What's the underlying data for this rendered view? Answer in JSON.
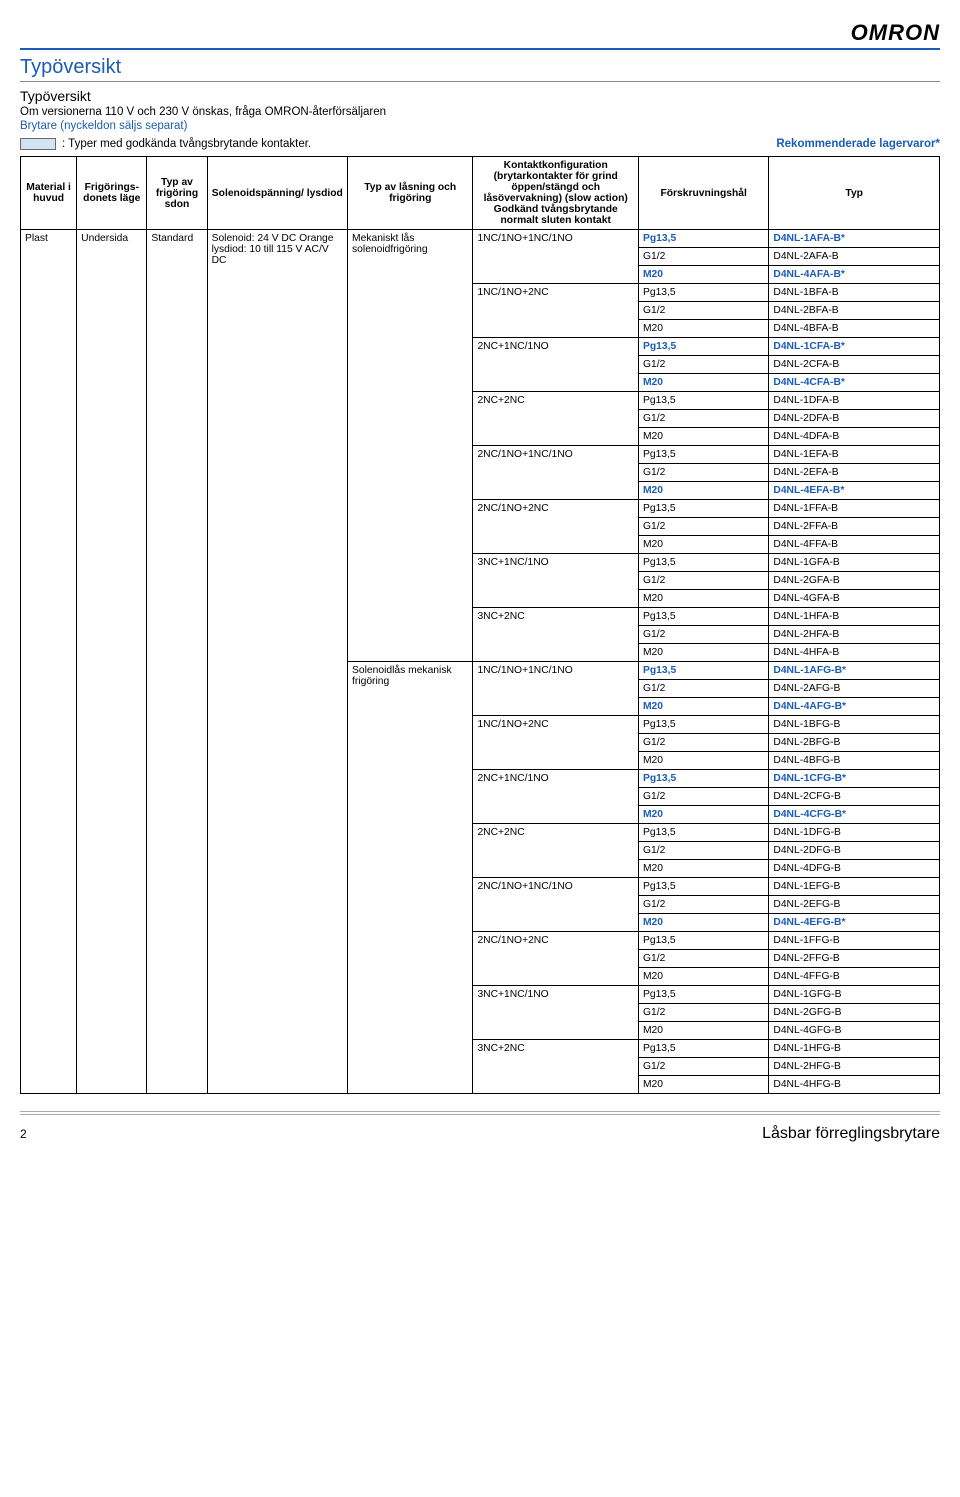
{
  "logo": "OMRON",
  "sectionTitle": "Typöversikt",
  "subhead": "Typöversikt",
  "intro": "Om versionerna 110 V och 230 V önskas, fråga OMRON-återförsäljaren",
  "subLink": "Brytare (nyckeldon säljs separat)",
  "legendText": ": Typer med godkända tvångsbrytande kontakter.",
  "recommended": "Rekommenderade lagervaror*",
  "headers": {
    "h1": "Material i huvud",
    "h2": "Frigörings-donets läge",
    "h3": "Typ av frigöring sdon",
    "h4": "Solenoidspänning/ lysdiod",
    "h5": "Typ av låsning och frigöring",
    "h6": "Kontaktkonfiguration (brytarkontakter för grind öppen/stängd och låsövervakning) (slow action) Godkänd tvångsbrytande normalt sluten kontakt",
    "h7": "Förskruvningshål",
    "h8": "Typ"
  },
  "col1": "Plast",
  "col2": "Undersida",
  "col3": "Standard",
  "col4": "Solenoid: 24 V DC Orange lysdiod: 10 till 115 V AC/V DC",
  "lock1": "Mekaniskt lås solenoidfrigöring",
  "lock2": "Solenoidlås mekanisk frigöring",
  "contacts": [
    "1NC/1NO+1NC/1NO",
    "1NC/1NO+2NC",
    "2NC+1NC/1NO",
    "2NC+2NC",
    "2NC/1NO+1NC/1NO",
    "2NC/1NO+2NC",
    "3NC+1NC/1NO",
    "3NC+2NC"
  ],
  "holes": [
    "Pg13,5",
    "G1/2",
    "M20"
  ],
  "groups": [
    {
      "lock": "lock1",
      "types": [
        [
          "D4NL-1AFA-B*",
          "D4NL-2AFA-B",
          "D4NL-4AFA-B*"
        ],
        [
          "D4NL-1BFA-B",
          "D4NL-2BFA-B",
          "D4NL-4BFA-B"
        ],
        [
          "D4NL-1CFA-B*",
          "D4NL-2CFA-B",
          "D4NL-4CFA-B*"
        ],
        [
          "D4NL-1DFA-B",
          "D4NL-2DFA-B",
          "D4NL-4DFA-B"
        ],
        [
          "D4NL-1EFA-B",
          "D4NL-2EFA-B",
          "D4NL-4EFA-B*"
        ],
        [
          "D4NL-1FFA-B",
          "D4NL-2FFA-B",
          "D4NL-4FFA-B"
        ],
        [
          "D4NL-1GFA-B",
          "D4NL-2GFA-B",
          "D4NL-4GFA-B"
        ],
        [
          "D4NL-1HFA-B",
          "D4NL-2HFA-B",
          "D4NL-4HFA-B"
        ]
      ],
      "hl": [
        [
          0,
          0
        ],
        [
          0,
          2
        ],
        [
          2,
          0
        ],
        [
          2,
          2
        ],
        [
          4,
          2
        ]
      ]
    },
    {
      "lock": "lock2",
      "types": [
        [
          "D4NL-1AFG-B*",
          "D4NL-2AFG-B",
          "D4NL-4AFG-B*"
        ],
        [
          "D4NL-1BFG-B",
          "D4NL-2BFG-B",
          "D4NL-4BFG-B"
        ],
        [
          "D4NL-1CFG-B*",
          "D4NL-2CFG-B",
          "D4NL-4CFG-B*"
        ],
        [
          "D4NL-1DFG-B",
          "D4NL-2DFG-B",
          "D4NL-4DFG-B"
        ],
        [
          "D4NL-1EFG-B",
          "D4NL-2EFG-B",
          "D4NL-4EFG-B*"
        ],
        [
          "D4NL-1FFG-B",
          "D4NL-2FFG-B",
          "D4NL-4FFG-B"
        ],
        [
          "D4NL-1GFG-B",
          "D4NL-2GFG-B",
          "D4NL-4GFG-B"
        ],
        [
          "D4NL-1HFG-B",
          "D4NL-2HFG-B",
          "D4NL-4HFG-B"
        ]
      ],
      "hl": [
        [
          0,
          0
        ],
        [
          0,
          2
        ],
        [
          2,
          0
        ],
        [
          2,
          2
        ],
        [
          4,
          2
        ]
      ]
    }
  ],
  "pageNumber": "2",
  "footerTitle": "Låsbar förreglingsbrytare"
}
